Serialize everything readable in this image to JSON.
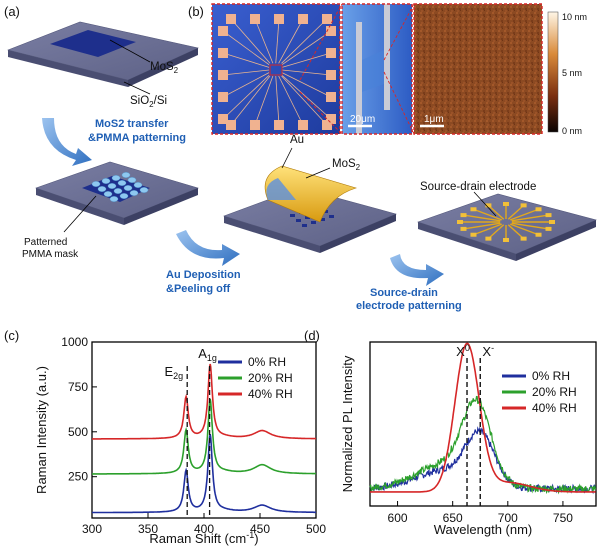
{
  "panels": {
    "a": "(a)",
    "b": "(b)",
    "c": "(c)",
    "d": "(d)"
  },
  "schematic": {
    "mos2": "MoS",
    "mos2_sub": "2",
    "sio2": "SiO",
    "sio2_sub": "2",
    "sio2_rest": "/Si",
    "step1_line1": "MoS2 transfer",
    "step1_line2": "&PMMA patterning",
    "mask_line1": "Patterned",
    "mask_line2": "PMMA mask",
    "au": "Au",
    "mos2_b": "MoS",
    "mos2_b_sub": "2",
    "step2_line1": "Au  Deposition",
    "step2_line2": "&Peeling off",
    "step3_line1": "Source-drain",
    "step3_line2": "electrode patterning",
    "sd_label": "Source-drain electrode"
  },
  "micrographs": {
    "scale1": "20μm",
    "scale2": "1μm",
    "colorbar_ticks": [
      "10 nm",
      "5 nm",
      "0 nm"
    ]
  },
  "colors": {
    "red": "#d62728",
    "green": "#2ca02c",
    "blue": "#1f2f9e",
    "substrate": "#6f7397",
    "mos2": "#1e2f8c",
    "gold": "#e6b422"
  },
  "chart_data": [
    {
      "type": "line",
      "panel": "c",
      "xlabel": "Raman Shift (cm",
      "xlabel_sup": "-1",
      "xlabel_end": ")",
      "ylabel": "Raman Intensity (a.u.)",
      "xlim": [
        300,
        500
      ],
      "ylim": [
        20,
        1000
      ],
      "xticks": [
        300,
        350,
        400,
        450,
        500
      ],
      "yticks": [
        250,
        500,
        750,
        1000
      ],
      "peak_labels": [
        {
          "text": "E",
          "sub": "2g",
          "x": 385
        },
        {
          "text": "A",
          "sub": "1g",
          "x": 405
        }
      ],
      "series": [
        {
          "name": "0%   RH",
          "color": "#1f2f9e",
          "baseline": 50,
          "e2g": 230,
          "a1g": 430,
          "bump": 40
        },
        {
          "name": "20% RH",
          "color": "#2ca02c",
          "baseline": 265,
          "e2g": 240,
          "a1g": 410,
          "bump": 50
        },
        {
          "name": "40% RH",
          "color": "#d62728",
          "baseline": 460,
          "e2g": 230,
          "a1g": 410,
          "bump": 45
        }
      ]
    },
    {
      "type": "line",
      "panel": "d",
      "xlabel": "Wavelength (nm)",
      "ylabel": "Normalized PL Intensity",
      "xlim": [
        575,
        780
      ],
      "ylim": [
        0,
        1.05
      ],
      "xticks": [
        600,
        650,
        700,
        750
      ],
      "peak_labels": [
        {
          "text": "X",
          "sup": "0",
          "x": 663
        },
        {
          "text": "X",
          "sup": "-",
          "x": 675
        }
      ],
      "series": [
        {
          "name": "0%   RH",
          "color": "#1f2f9e",
          "peak": 675,
          "amp": 0.3,
          "wing": 0.12
        },
        {
          "name": "20% RH",
          "color": "#2ca02c",
          "peak": 672,
          "amp": 0.47,
          "wing": 0.16
        },
        {
          "name": "40% RH",
          "color": "#d62728",
          "peak": 663,
          "amp": 0.94,
          "wing": 0.0
        }
      ]
    }
  ]
}
